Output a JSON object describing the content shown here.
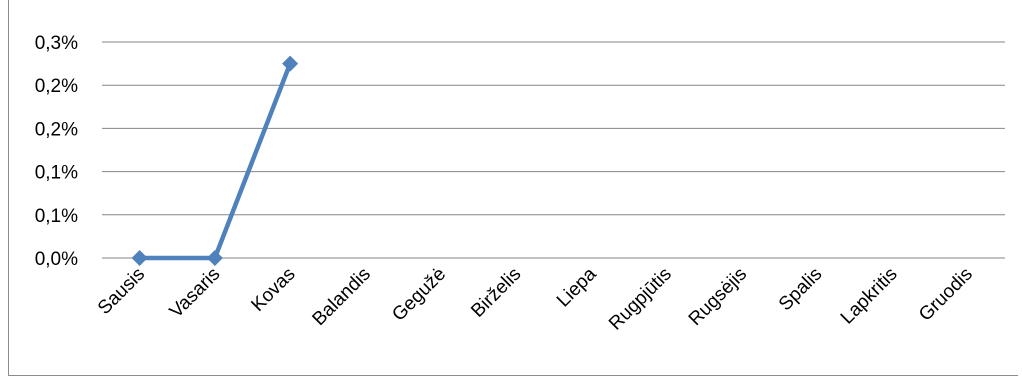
{
  "chart_data": {
    "type": "line",
    "title": "",
    "xlabel": "",
    "ylabel": "",
    "categories": [
      "Sausis",
      "Vasaris",
      "Kovas",
      "Balandis",
      "Gegužė",
      "Birželis",
      "Liepa",
      "Rugpjūtis",
      "Rugsėjis",
      "Spalis",
      "Lapkritis",
      "Gruodis"
    ],
    "series": [
      {
        "values": [
          0.0,
          0.0,
          0.225,
          null,
          null,
          null,
          null,
          null,
          null,
          null,
          null,
          null
        ]
      }
    ],
    "y_tick_labels": [
      "0,0%",
      "0,1%",
      "0,1%",
      "0,2%",
      "0,2%",
      "0,3%"
    ],
    "ylim": [
      0,
      0.25
    ],
    "y_unit": "%",
    "grid": true,
    "legend": "none",
    "colors": {
      "series": "#4f81bd",
      "grid": "#868686"
    }
  }
}
